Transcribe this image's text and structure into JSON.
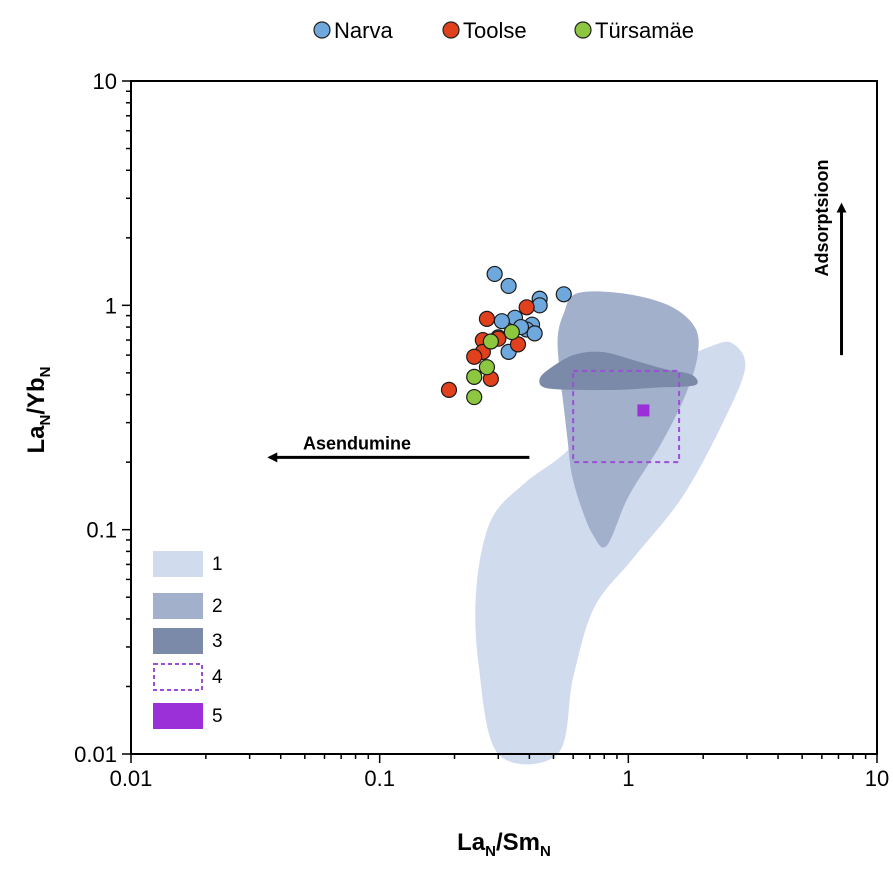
{
  "chart_data": {
    "type": "scatter",
    "x_scale": "log",
    "y_scale": "log",
    "xlim": [
      0.01,
      10
    ],
    "ylim": [
      0.01,
      10
    ],
    "xlabel": {
      "base": "La",
      "sub1": "N",
      "mid": "/Sm",
      "sub2": "N"
    },
    "ylabel": {
      "base": "La",
      "sub1": "N",
      "mid": "/Yb",
      "sub2": "N"
    },
    "x_ticks": [
      {
        "value": 0.01,
        "label": "0.01"
      },
      {
        "value": 0.1,
        "label": "0.1"
      },
      {
        "value": 1,
        "label": "1"
      },
      {
        "value": 10,
        "label": "10"
      }
    ],
    "y_ticks": [
      {
        "value": 0.01,
        "label": "0.01"
      },
      {
        "value": 0.1,
        "label": "0.1"
      },
      {
        "value": 1,
        "label": "1"
      },
      {
        "value": 10,
        "label": "10"
      }
    ],
    "grid": false,
    "legend_position": "top-center",
    "series": [
      {
        "name": "Narva",
        "color": "#6fa8dc",
        "points": [
          {
            "x": 0.29,
            "y": 1.38
          },
          {
            "x": 0.33,
            "y": 1.22
          },
          {
            "x": 0.44,
            "y": 1.07
          },
          {
            "x": 0.55,
            "y": 1.12
          },
          {
            "x": 0.44,
            "y": 1.0
          },
          {
            "x": 0.35,
            "y": 0.88
          },
          {
            "x": 0.31,
            "y": 0.85
          },
          {
            "x": 0.41,
            "y": 0.82
          },
          {
            "x": 0.39,
            "y": 0.78
          },
          {
            "x": 0.42,
            "y": 0.75
          },
          {
            "x": 0.37,
            "y": 0.8
          },
          {
            "x": 0.33,
            "y": 0.62
          },
          {
            "x": 0.3,
            "y": 0.72
          }
        ]
      },
      {
        "name": "Toolse",
        "color": "#e0401c",
        "points": [
          {
            "x": 0.39,
            "y": 0.98
          },
          {
            "x": 0.27,
            "y": 0.87
          },
          {
            "x": 0.3,
            "y": 0.71
          },
          {
            "x": 0.26,
            "y": 0.7
          },
          {
            "x": 0.36,
            "y": 0.67
          },
          {
            "x": 0.26,
            "y": 0.62
          },
          {
            "x": 0.24,
            "y": 0.59
          },
          {
            "x": 0.28,
            "y": 0.47
          },
          {
            "x": 0.19,
            "y": 0.42
          }
        ]
      },
      {
        "name": "Türsamäe",
        "color": "#8dc63f",
        "points": [
          {
            "x": 0.34,
            "y": 0.76
          },
          {
            "x": 0.28,
            "y": 0.69
          },
          {
            "x": 0.27,
            "y": 0.53
          },
          {
            "x": 0.24,
            "y": 0.48
          },
          {
            "x": 0.24,
            "y": 0.39
          }
        ]
      }
    ],
    "regions": [
      {
        "id": "1",
        "label": "1",
        "fill": "#d0dbee",
        "style": "filled",
        "boundary": [
          [
            2.6,
            0.68
          ],
          [
            2.95,
            0.53
          ],
          [
            2.4,
            0.3
          ],
          [
            1.65,
            0.14
          ],
          [
            1.05,
            0.075
          ],
          [
            0.73,
            0.045
          ],
          [
            0.6,
            0.022
          ],
          [
            0.52,
            0.01
          ],
          [
            0.3,
            0.01
          ],
          [
            0.25,
            0.025
          ],
          [
            0.245,
            0.055
          ],
          [
            0.28,
            0.11
          ],
          [
            0.38,
            0.16
          ],
          [
            0.53,
            0.21
          ],
          [
            0.75,
            0.3
          ],
          [
            1.1,
            0.42
          ],
          [
            1.55,
            0.55
          ],
          [
            2.1,
            0.65
          ]
        ]
      },
      {
        "id": "2",
        "label": "2",
        "fill": "#a3b0cc",
        "style": "filled",
        "boundary": [
          [
            0.62,
            1.13
          ],
          [
            0.95,
            1.13
          ],
          [
            1.45,
            1.0
          ],
          [
            1.85,
            0.8
          ],
          [
            1.9,
            0.6
          ],
          [
            1.7,
            0.4
          ],
          [
            1.35,
            0.24
          ],
          [
            1.0,
            0.14
          ],
          [
            0.82,
            0.085
          ],
          [
            0.72,
            0.095
          ],
          [
            0.64,
            0.13
          ],
          [
            0.59,
            0.18
          ],
          [
            0.57,
            0.25
          ],
          [
            0.55,
            0.35
          ],
          [
            0.53,
            0.5
          ],
          [
            0.52,
            0.72
          ],
          [
            0.55,
            0.92
          ]
        ]
      },
      {
        "id": "3",
        "label": "3",
        "fill": "#7c8aa9",
        "style": "filled",
        "boundary": [
          [
            0.48,
            0.52
          ],
          [
            0.6,
            0.6
          ],
          [
            0.78,
            0.62
          ],
          [
            1.05,
            0.57
          ],
          [
            1.4,
            0.52
          ],
          [
            1.8,
            0.49
          ],
          [
            1.85,
            0.44
          ],
          [
            1.3,
            0.43
          ],
          [
            0.9,
            0.42
          ],
          [
            0.6,
            0.42
          ],
          [
            0.46,
            0.43
          ],
          [
            0.44,
            0.47
          ]
        ]
      },
      {
        "id": "4",
        "label": "4",
        "stroke": "#9b4ed8",
        "style": "dashed-box",
        "x_range": [
          0.6,
          1.6
        ],
        "y_range": [
          0.2,
          0.51
        ]
      },
      {
        "id": "5",
        "label": "5",
        "fill": "#9b30d9",
        "style": "square-marker",
        "point": {
          "x": 1.15,
          "y": 0.34
        }
      }
    ],
    "annotations": [
      {
        "text": "Asendumine",
        "arrow": "left",
        "from": {
          "x": 0.4,
          "y": 0.21
        },
        "to": {
          "x": 0.035,
          "y": 0.21
        }
      },
      {
        "text": "Adsorptsioon",
        "arrow": "up",
        "from": {
          "x": 7.2,
          "y": 0.6
        },
        "to": {
          "x": 7.2,
          "y": 2.9
        }
      }
    ]
  }
}
